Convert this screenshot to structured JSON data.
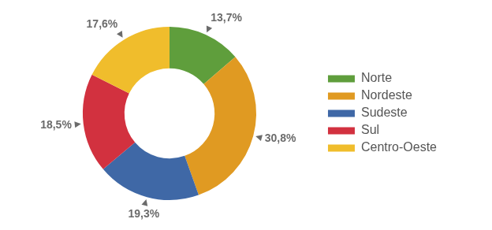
{
  "chart_data": {
    "type": "doughnut",
    "categories": [
      "Norte",
      "Nordeste",
      "Sudeste",
      "Sul",
      "Centro-Oeste"
    ],
    "values": [
      13.7,
      30.8,
      19.3,
      18.5,
      17.6
    ],
    "value_labels": [
      "13,7%",
      "30,8%",
      "19,3%",
      "18,5%",
      "17,6%"
    ],
    "colors": [
      "#5f9e3c",
      "#e09a22",
      "#3f68a6",
      "#d2313f",
      "#f0bd2c"
    ],
    "data_labels": true,
    "legend": "right"
  }
}
